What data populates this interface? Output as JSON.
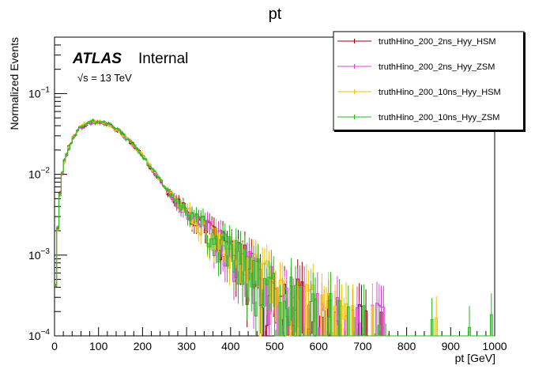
{
  "chart_data": {
    "type": "line",
    "title": "pt",
    "xlabel": "pt [GeV]",
    "ylabel": "Normalized Events",
    "xlim": [
      0,
      1000
    ],
    "ylim": [
      0.0001,
      0.5
    ],
    "yscale": "log",
    "x_ticks": [
      "0",
      "100",
      "200",
      "300",
      "400",
      "500",
      "600",
      "700",
      "800",
      "900",
      "1000"
    ],
    "y_ticks": [
      {
        "base": "10",
        "exp": "−1",
        "value": 0.1
      },
      {
        "base": "10",
        "exp": "−2",
        "value": 0.01
      },
      {
        "base": "10",
        "exp": "−3",
        "value": 0.001
      },
      {
        "base": "10",
        "exp": "−4",
        "value": 0.0001
      }
    ],
    "annotations": {
      "experiment": "ATLAS",
      "status": "Internal",
      "energy_sqrt": "√s",
      "energy_value": " = 13 TeV"
    },
    "legend_position": "top-right",
    "bin_width": 5,
    "shape_points": [
      [
        0,
        0.00015
      ],
      [
        5,
        0.0012
      ],
      [
        10,
        0.004
      ],
      [
        15,
        0.008
      ],
      [
        20,
        0.013
      ],
      [
        30,
        0.02
      ],
      [
        40,
        0.027
      ],
      [
        50,
        0.033
      ],
      [
        60,
        0.038
      ],
      [
        70,
        0.042
      ],
      [
        80,
        0.044
      ],
      [
        90,
        0.045
      ],
      [
        100,
        0.045
      ],
      [
        110,
        0.044
      ],
      [
        120,
        0.042
      ],
      [
        130,
        0.039
      ],
      [
        140,
        0.036
      ],
      [
        150,
        0.033
      ],
      [
        160,
        0.029
      ],
      [
        170,
        0.026
      ],
      [
        180,
        0.023
      ],
      [
        190,
        0.02
      ],
      [
        200,
        0.017
      ],
      [
        210,
        0.014
      ],
      [
        220,
        0.012
      ],
      [
        230,
        0.01
      ],
      [
        240,
        0.0085
      ],
      [
        250,
        0.007
      ],
      [
        260,
        0.0058
      ],
      [
        280,
        0.0045
      ],
      [
        300,
        0.0035
      ],
      [
        320,
        0.0028
      ],
      [
        340,
        0.0022
      ],
      [
        360,
        0.0017
      ],
      [
        380,
        0.0014
      ],
      [
        400,
        0.0011
      ],
      [
        420,
        0.0009
      ],
      [
        440,
        0.00075
      ],
      [
        460,
        0.0006
      ],
      [
        480,
        0.00048
      ],
      [
        500,
        0.00038
      ],
      [
        550,
        0.00026
      ],
      [
        600,
        0.00018
      ],
      [
        650,
        0.00015
      ],
      [
        700,
        0.00013
      ],
      [
        750,
        0.00011
      ],
      [
        800,
        0.0001
      ],
      [
        1000,
        0.0001
      ]
    ],
    "series": [
      {
        "name": "truthHino_200_2ns_Hyy_HSM",
        "color": "#990000"
      },
      {
        "name": "truthHino_200_2ns_Hyy_ZSM",
        "color": "#e040e0"
      },
      {
        "name": "truthHino_200_10ns_Hyy_HSM",
        "color": "#f2c200"
      },
      {
        "name": "truthHino_200_10ns_Hyy_ZSM",
        "color": "#22bb22"
      }
    ]
  }
}
